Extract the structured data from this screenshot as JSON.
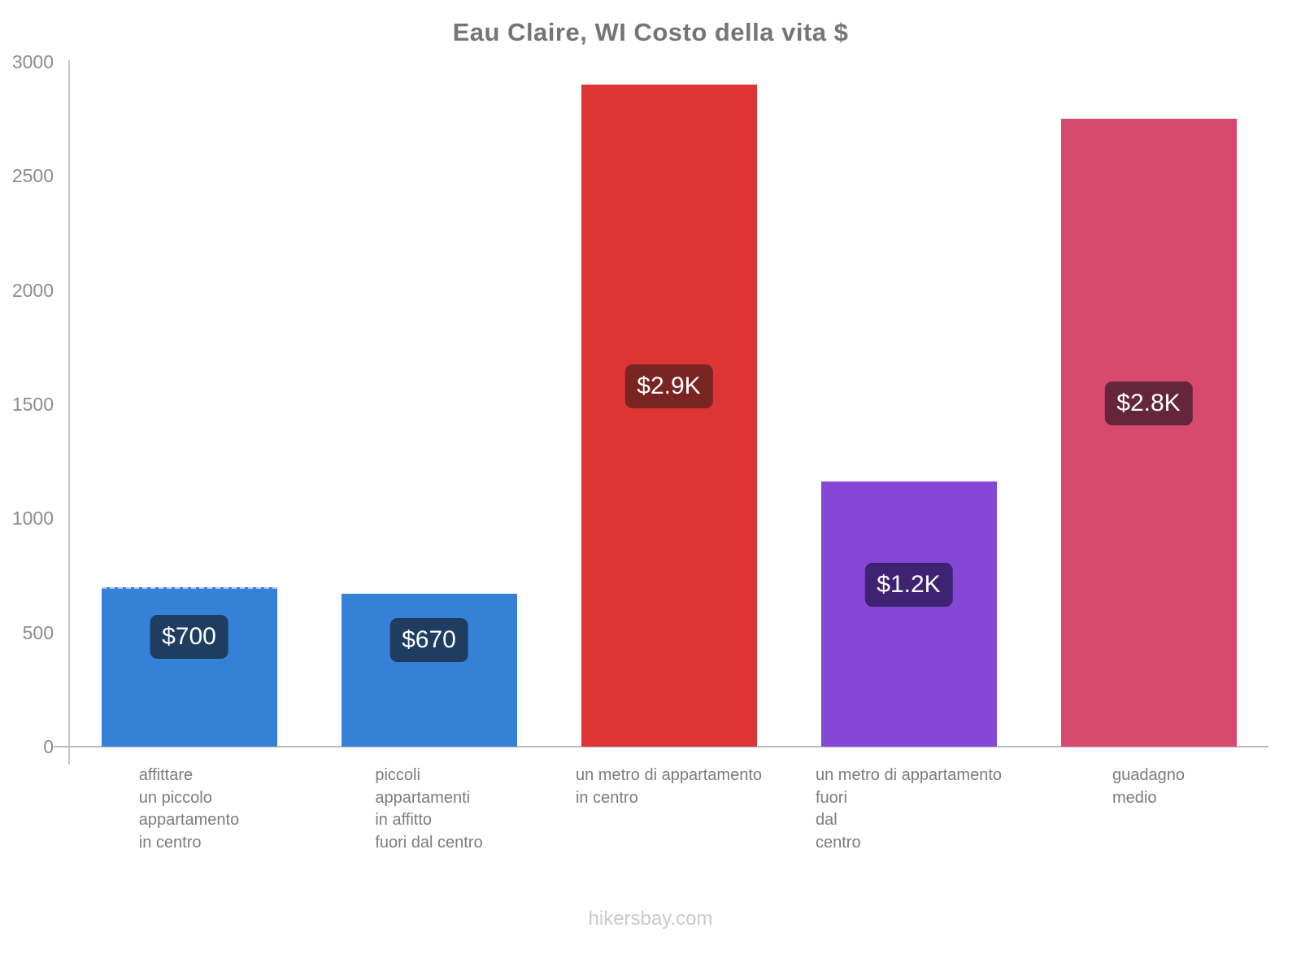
{
  "title": "Eau Claire, WI Costo della vita $",
  "footer": "hikersbay.com",
  "colors": {
    "title_text": "#757575",
    "axis_line": "#c6c6c6",
    "baseline": "#b9b9b9",
    "tick_text": "#8c8c8c",
    "category_text": "#7c7c7c",
    "footer_text": "#c9c9ce"
  },
  "chart_data": {
    "type": "bar",
    "title": "Eau Claire, WI Costo della vita $",
    "xlabel": "",
    "ylabel": "",
    "ylim": [
      0,
      3000
    ],
    "yticks": [
      0,
      500,
      1000,
      1500,
      2000,
      2500,
      3000
    ],
    "grid": false,
    "legend": false,
    "categories": [
      "affittare un piccolo appartamento in centro",
      "piccoli appartamenti in affitto fuori dal centro",
      "un metro di appartamento in centro",
      "un metro di appartamento fuori dal centro",
      "guadagno medio"
    ],
    "category_lines": [
      [
        "affittare",
        "un piccolo",
        "appartamento",
        "in centro"
      ],
      [
        "piccoli",
        "appartamenti",
        "in affitto",
        "fuori dal centro"
      ],
      [
        "un metro di appartamento",
        "in centro"
      ],
      [
        "un metro di appartamento",
        "fuori",
        "dal",
        "centro"
      ],
      [
        "guadagno",
        "medio"
      ]
    ],
    "values": [
      700,
      670,
      2900,
      1160,
      2750
    ],
    "value_labels": [
      "$700",
      "$670",
      "$2.9K",
      "$1.2K",
      "$2.8K"
    ],
    "bar_colors": [
      "#3681d8",
      "#3681d8",
      "#dc3534",
      "#8547d5",
      "#d74a6e"
    ],
    "label_bg_colors": [
      "#1e3d60",
      "#1e3d60",
      "#7a2323",
      "#3e2373",
      "#65263b"
    ]
  }
}
